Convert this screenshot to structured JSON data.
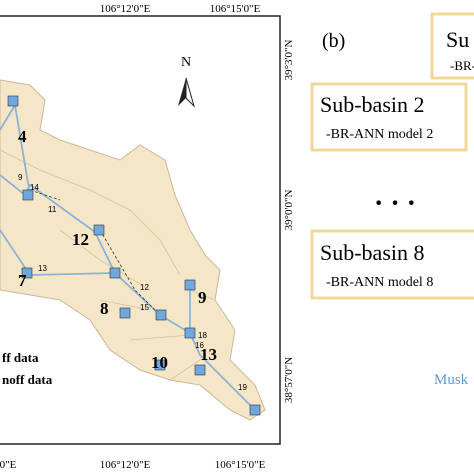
{
  "map": {
    "top_labels": [
      "106°12'0\"E",
      "106°15'0\"E"
    ],
    "bottom_labels": [
      "0\"E",
      "106°12'0\"E",
      "106°15'0\"E"
    ],
    "right_labels": [
      "39°3'0\"N",
      "39°0'0\"N",
      "38°57'0\"N"
    ],
    "north": "N",
    "subbasins": [
      "4",
      "12",
      "7",
      "8",
      "9",
      "10",
      "13"
    ],
    "reaches": [
      "9",
      "14",
      "11",
      "13",
      "12",
      "15",
      "18",
      "16",
      "19"
    ],
    "legend": [
      "ff data",
      "noff data"
    ]
  },
  "panel_b": {
    "label": "(b)",
    "boxes": [
      {
        "title": "Su",
        "model": "-BR-"
      },
      {
        "title": "Sub-basin 2",
        "model": "-BR-ANN model 2"
      },
      {
        "title": "Sub-basin 8",
        "model": "-BR-ANN model 8"
      }
    ],
    "ellipsis": "· · ·",
    "muskingum": "Musk"
  }
}
